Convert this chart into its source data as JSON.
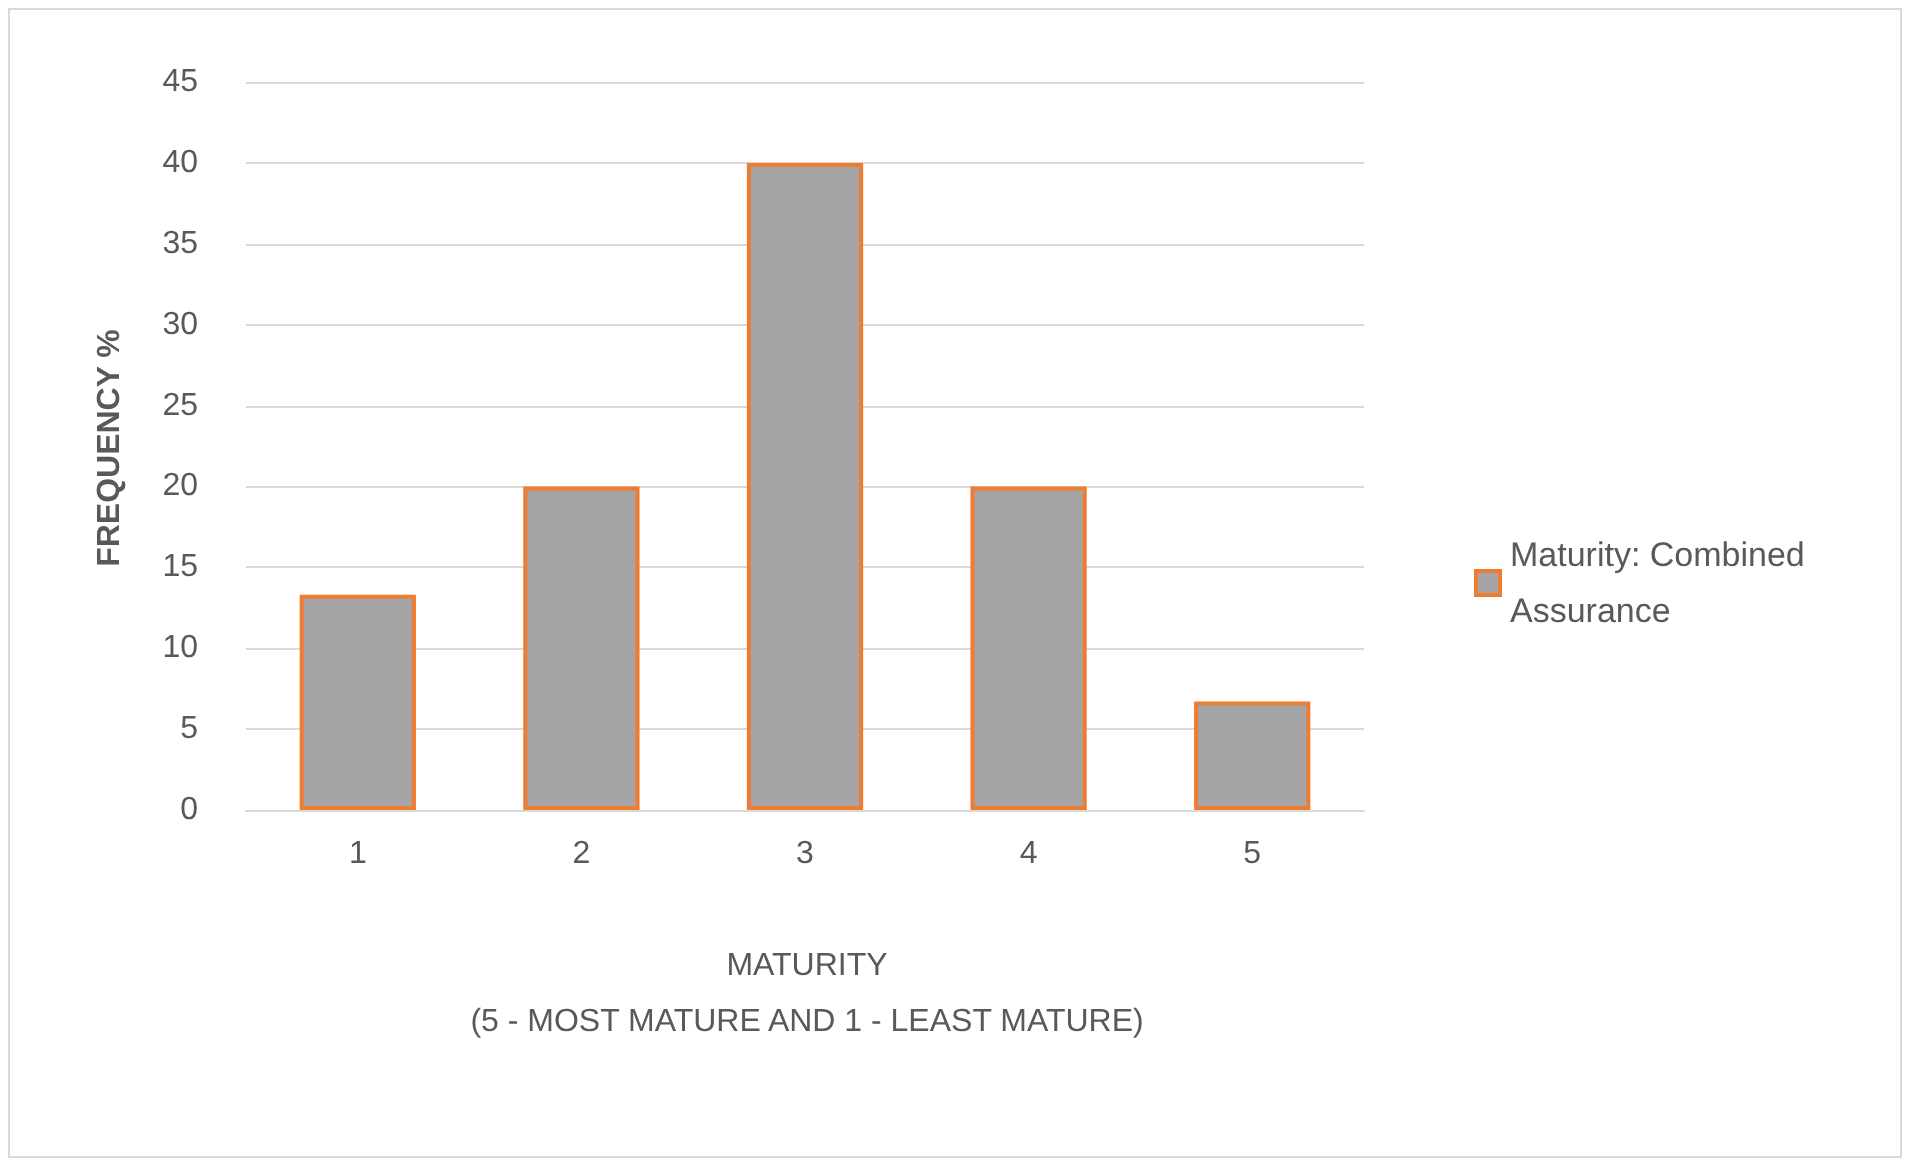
{
  "chart_data": {
    "type": "bar",
    "xlabel": "MATURITY\n(5 - MOST MATURE AND 1 - LEAST MATURE)",
    "ylabel": "FREQUENCY %",
    "categories": [
      "1",
      "2",
      "3",
      "4",
      "5"
    ],
    "series": [
      {
        "name": "Maturity: Combined Assurance",
        "color": "#a5a5a5",
        "values": [
          13.3,
          20,
          40,
          20,
          6.7
        ]
      }
    ],
    "ylim": [
      0,
      45
    ],
    "yticks": [
      0,
      5,
      10,
      15,
      20,
      25,
      30,
      35,
      40,
      45
    ],
    "grid": "y",
    "legend": "right"
  }
}
